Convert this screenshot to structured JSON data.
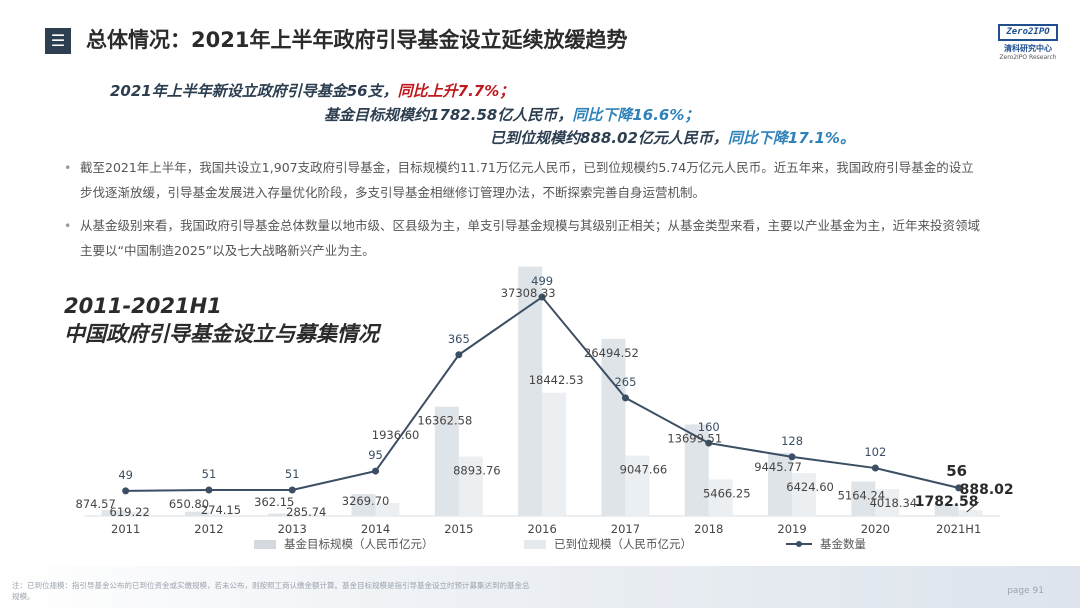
{
  "header": {
    "menu_icon": "hamburger-icon",
    "title": "总体情况：2021年上半年政府引导基金设立延续放缓趋势"
  },
  "logo": {
    "badge": "Zero2IPO",
    "cn": "清科研究中心",
    "en": "Zero2IPO Research"
  },
  "highlights": {
    "line1_main": "2021年上半年新设立政府引导基金56支，",
    "line1_em": "同比上升",
    "line1_tail": "7.7%；",
    "line2_main": "基金目标规模约1782.58亿人民币，",
    "line2_em": "同比下降",
    "line2_tail": "16.6%；",
    "line3_main": "已到位规模约888.02亿元人民币，",
    "line3_em": "同比下降",
    "line3_tail": "17.1%。"
  },
  "bullets": [
    "截至2021年上半年，我国共设立1,907支政府引导基金，目标规模约11.71万亿元人民币，已到位规模约5.74万亿元人民币。近五年来，我国政府引导基金的设立步伐逐渐放缓，引导基金发展进入存量优化阶段，多支引导基金相继修订管理办法，不断探索完善自身运营机制。",
    "从基金级别来看，我国政府引导基金总体数量以地市级、区县级为主，单支引导基金规模与其级别正相关；从基金类型来看，主要以产业基金为主，近年来投资领域主要以“中国制造2025”以及七大战略新兴产业为主。"
  ],
  "chart_title": {
    "line1": "2011-2021H1",
    "line2": "中国政府引导基金设立与募集情况"
  },
  "chart_data": {
    "type": "bar",
    "categories": [
      "2011",
      "2012",
      "2013",
      "2014",
      "2015",
      "2016",
      "2017",
      "2018",
      "2019",
      "2020",
      "2021H1"
    ],
    "series": [
      {
        "name": "基金目标规模（人民币亿元）",
        "type": "bar",
        "color": "#dfe4e9",
        "values": [
          874.57,
          650.8,
          362.15,
          3269.7,
          16362.58,
          37308.33,
          26494.52,
          13699.51,
          9445.77,
          5164.24,
          1782.58
        ]
      },
      {
        "name": "已到位规模（人民币亿元）",
        "type": "bar",
        "color": "#eceff2",
        "values": [
          619.22,
          274.15,
          285.74,
          1936.6,
          8893.76,
          18442.53,
          9047.66,
          5466.25,
          6424.6,
          4018.34,
          888.02
        ]
      },
      {
        "name": "基金数量",
        "type": "line",
        "color": "#3b4e63",
        "values": [
          49,
          51,
          51,
          95,
          365,
          499,
          265,
          160,
          128,
          102,
          56
        ]
      }
    ],
    "bar_ylim": [
      0,
      38000
    ],
    "line_ylim": [
      0,
      520
    ],
    "legend": "bottom"
  },
  "footer": {
    "note": "注：已到位规模：指引导基金公布的已到位资金或实缴规模，若未公布，则按照工商认缴金额计算。基金目标规模是指引导基金设立时预计募集达到的基金总规模。",
    "page": "page  91"
  }
}
